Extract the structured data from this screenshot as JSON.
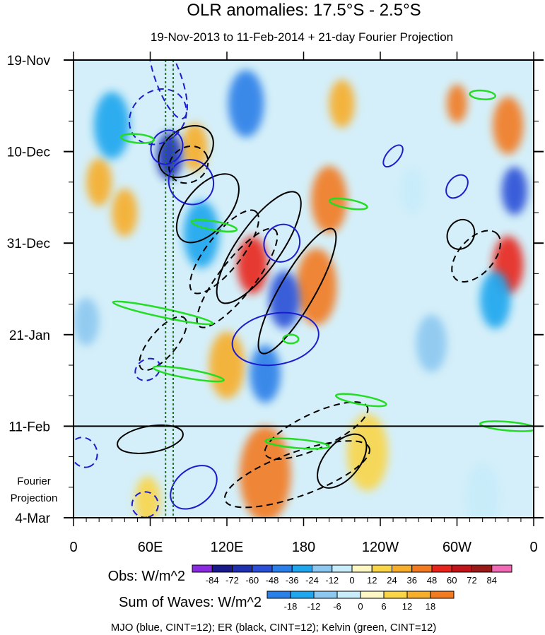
{
  "chart_data": {
    "type": "heatmap",
    "title": "OLR anomalies: 17.5°S - 2.5°S",
    "subtitle": "19-Nov-2013 to 11-Feb-2014 + 21-day Fourier Projection",
    "x_ticks": [
      "0",
      "60E",
      "120E",
      "180",
      "120W",
      "60W",
      "0"
    ],
    "x_tick_lon": [
      0,
      60,
      120,
      180,
      240,
      300,
      360
    ],
    "y_ticks": [
      "19-Nov",
      "10-Dec",
      "31-Dec",
      "21-Jan",
      "11-Feb",
      "4-Mar"
    ],
    "y_tick_day": [
      0,
      21,
      42,
      63,
      84,
      105
    ],
    "projection_label": [
      "Fourier",
      "Projection"
    ],
    "projection_start_day": 84,
    "day_range": [
      0,
      105
    ],
    "lon_range": [
      0,
      360
    ],
    "reference_lines_lon": [
      72,
      78
    ],
    "obs_legend": {
      "label": "Obs: W/m^2",
      "levels": [
        "-84",
        "-72",
        "-60",
        "-48",
        "-36",
        "-24",
        "-12",
        "0",
        "12",
        "24",
        "36",
        "48",
        "60",
        "72",
        "84"
      ],
      "colors": [
        "#8a2be2",
        "#1a1a8c",
        "#1f30b0",
        "#2b4fd6",
        "#2a7fe8",
        "#1fa6ee",
        "#8cc8f0",
        "#c8ecfa",
        "#fdf7c3",
        "#f9d548",
        "#f7ae2a",
        "#f27a20",
        "#e8251c",
        "#c0141a",
        "#9a1a1a",
        "#f06ab5"
      ]
    },
    "waves_legend": {
      "label": "Sum of Waves: W/m^2",
      "levels": [
        "-18",
        "-12",
        "-6",
        "0",
        "6",
        "12",
        "18"
      ],
      "colors": [
        "#2a7fe8",
        "#1fa6ee",
        "#8cc8f0",
        "#c8ecfa",
        "#fdf7c3",
        "#f9d548",
        "#f7ae2a",
        "#f27a20"
      ]
    },
    "footnote": "MJO (blue, CINT=12); ER (black, CINT=12); Kelvin (green, CINT=12)",
    "contour_series": [
      {
        "name": "MJO",
        "color": "blue",
        "cint": 12
      },
      {
        "name": "ER",
        "color": "black",
        "cint": 12
      },
      {
        "name": "Kelvin",
        "color": "green",
        "cint": 12
      }
    ],
    "mjo_contours": [
      {
        "lon": 74,
        "day": 4,
        "rlon": 10,
        "rday": 10,
        "angle": -20,
        "dash": true
      },
      {
        "lon": 73,
        "day": 20,
        "rlon": 12,
        "rday": 4,
        "angle": 30,
        "dash": false
      },
      {
        "lon": 66,
        "day": 13,
        "rlon": 20,
        "rday": 7,
        "angle": 50,
        "dash": true
      },
      {
        "lon": 92,
        "day": 28,
        "rlon": 18,
        "rday": 5,
        "angle": 45,
        "dash": false
      },
      {
        "lon": 163,
        "day": 42,
        "rlon": 15,
        "rday": 4,
        "angle": -60,
        "dash": false
      },
      {
        "lon": 158,
        "day": 64,
        "rlon": 20,
        "rday": 10,
        "angle": 80,
        "dash": false
      },
      {
        "lon": 58,
        "day": 71,
        "rlon": 8,
        "rday": 3,
        "angle": 60,
        "dash": true
      },
      {
        "lon": 250,
        "day": 22,
        "rlon": 5,
        "rday": 3,
        "angle": 40,
        "dash": false
      },
      {
        "lon": 300,
        "day": 29,
        "rlon": 7,
        "rday": 3,
        "angle": 40,
        "dash": false
      },
      {
        "lon": 94,
        "day": 98,
        "rlon": 14,
        "rday": 6,
        "angle": 50,
        "dash": false
      },
      {
        "lon": 56,
        "day": 102,
        "rlon": 10,
        "rday": 3,
        "angle": 80,
        "dash": true
      },
      {
        "lon": 8,
        "day": 90,
        "rlon": 12,
        "rday": 3,
        "angle": 65,
        "dash": true
      }
    ],
    "er_contours": [
      {
        "lon": 90,
        "day": 24,
        "rlon": 16,
        "rday": 4,
        "angle": -35,
        "dash": true
      },
      {
        "lon": 88,
        "day": 21,
        "rlon": 24,
        "rday": 5,
        "angle": -40,
        "dash": false
      },
      {
        "lon": 105,
        "day": 34,
        "rlon": 32,
        "rday": 5,
        "angle": -50,
        "dash": false
      },
      {
        "lon": 118,
        "day": 44,
        "rlon": 40,
        "rday": 4,
        "angle": -52,
        "dash": true
      },
      {
        "lon": 128,
        "day": 50,
        "rlon": 48,
        "rday": 4,
        "angle": -52,
        "dash": true
      },
      {
        "lon": 145,
        "day": 43,
        "rlon": 52,
        "rday": 5,
        "angle": -55,
        "dash": false
      },
      {
        "lon": 175,
        "day": 53,
        "rlon": 56,
        "rday": 4,
        "angle": -60,
        "dash": false
      },
      {
        "lon": 70,
        "day": 65,
        "rlon": 26,
        "rday": 3,
        "angle": -50,
        "dash": true
      },
      {
        "lon": 315,
        "day": 45,
        "rlon": 24,
        "rday": 4,
        "angle": -48,
        "dash": true
      },
      {
        "lon": 303,
        "day": 40,
        "rlon": 12,
        "rday": 3,
        "angle": -60,
        "dash": false
      },
      {
        "lon": 190,
        "day": 85,
        "rlon": 44,
        "rday": 4,
        "angle": -25,
        "dash": true
      },
      {
        "lon": 175,
        "day": 95,
        "rlon": 60,
        "rday": 5,
        "angle": -20,
        "dash": true
      },
      {
        "lon": 60,
        "day": 87,
        "rlon": 26,
        "rday": 3,
        "angle": -10,
        "dash": false
      },
      {
        "lon": 210,
        "day": 92,
        "rlon": 25,
        "rday": 4,
        "angle": -50,
        "dash": false
      }
    ],
    "kelvin_contours": [
      {
        "lon": 50,
        "day": 18,
        "rlon": 13,
        "rday": 1,
        "angle": 5
      },
      {
        "lon": 110,
        "day": 38,
        "rlon": 18,
        "rday": 1,
        "angle": 10
      },
      {
        "lon": 70,
        "day": 58,
        "rlon": 40,
        "rday": 1,
        "angle": 12
      },
      {
        "lon": 90,
        "day": 72,
        "rlon": 28,
        "rday": 1,
        "angle": 10
      },
      {
        "lon": 170,
        "day": 64,
        "rlon": 6,
        "rday": 1,
        "angle": 0
      },
      {
        "lon": 215,
        "day": 33,
        "rlon": 15,
        "rday": 1,
        "angle": 10
      },
      {
        "lon": 320,
        "day": 8,
        "rlon": 10,
        "rday": 1,
        "angle": 5
      },
      {
        "lon": 225,
        "day": 78,
        "rlon": 20,
        "rday": 1,
        "angle": 10
      },
      {
        "lon": 175,
        "day": 88,
        "rlon": 25,
        "rday": 1,
        "angle": 5
      },
      {
        "lon": 340,
        "day": 84,
        "rlon": 22,
        "rday": 1,
        "angle": 5
      }
    ],
    "positive_blobs": [
      {
        "lon": 200,
        "day": 32,
        "r": 14,
        "v": 36
      },
      {
        "lon": 190,
        "day": 52,
        "r": 16,
        "v": 36
      },
      {
        "lon": 140,
        "day": 47,
        "r": 12,
        "v": 48
      },
      {
        "lon": 150,
        "day": 95,
        "r": 20,
        "v": 36
      },
      {
        "lon": 340,
        "day": 47,
        "r": 12,
        "v": 48
      },
      {
        "lon": 340,
        "day": 15,
        "r": 12,
        "v": 36
      },
      {
        "lon": 95,
        "day": 20,
        "r": 10,
        "v": 24
      },
      {
        "lon": 40,
        "day": 35,
        "r": 10,
        "v": 24
      },
      {
        "lon": 210,
        "day": 10,
        "r": 10,
        "v": 24
      },
      {
        "lon": 120,
        "day": 70,
        "r": 14,
        "v": 24
      },
      {
        "lon": 58,
        "day": 101,
        "r": 10,
        "v": 12
      },
      {
        "lon": 300,
        "day": 10,
        "r": 8,
        "v": 36
      },
      {
        "lon": 20,
        "day": 28,
        "r": 10,
        "v": 24
      },
      {
        "lon": 230,
        "day": 90,
        "r": 16,
        "v": 12
      }
    ],
    "negative_blobs": [
      {
        "lon": 75,
        "day": 22,
        "r": 10,
        "v": -72
      },
      {
        "lon": 345,
        "day": 30,
        "r": 10,
        "v": -60
      },
      {
        "lon": 165,
        "day": 55,
        "r": 12,
        "v": -60
      },
      {
        "lon": 150,
        "day": 72,
        "r": 12,
        "v": -48
      },
      {
        "lon": 135,
        "day": 10,
        "r": 14,
        "v": -48
      },
      {
        "lon": 100,
        "day": 40,
        "r": 14,
        "v": -36
      },
      {
        "lon": 30,
        "day": 15,
        "r": 14,
        "v": -36
      },
      {
        "lon": 330,
        "day": 55,
        "r": 12,
        "v": -36
      },
      {
        "lon": 320,
        "day": 100,
        "r": 14,
        "v": -12
      },
      {
        "lon": 280,
        "day": 65,
        "r": 12,
        "v": -24
      },
      {
        "lon": 10,
        "day": 60,
        "r": 10,
        "v": -24
      },
      {
        "lon": 265,
        "day": 30,
        "r": 10,
        "v": -12
      }
    ]
  }
}
